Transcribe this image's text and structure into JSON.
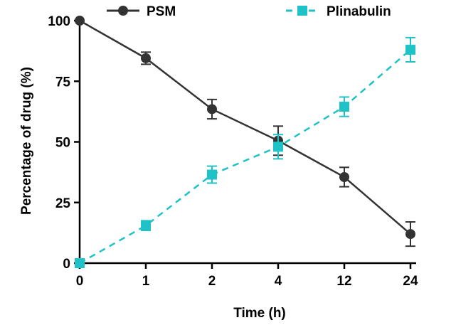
{
  "chart_data": {
    "type": "line",
    "title": "",
    "xlabel": "Time (h)",
    "ylabel": "Percentage of drug (%)",
    "categories": [
      "0",
      "1",
      "2",
      "4",
      "12",
      "24"
    ],
    "ylim": [
      0,
      100
    ],
    "yticks": [
      "0",
      "25",
      "50",
      "75",
      "100"
    ],
    "ytick_values": [
      0,
      25,
      50,
      75,
      100
    ],
    "legend_position": "top",
    "series": [
      {
        "name": "PSM",
        "color": "#333333",
        "marker": "circle",
        "line_style": "solid",
        "values": [
          100,
          84.5,
          63.5,
          50.5,
          35.5,
          12
        ],
        "errors": [
          0,
          2.5,
          4,
          6,
          4,
          5
        ]
      },
      {
        "name": "Plinabulin",
        "color": "#1fc2c6",
        "marker": "square",
        "line_style": "dashed",
        "values": [
          0,
          15.5,
          36.5,
          48,
          64.5,
          88
        ],
        "errors": [
          0,
          2,
          3.5,
          5,
          4,
          5
        ]
      }
    ]
  }
}
